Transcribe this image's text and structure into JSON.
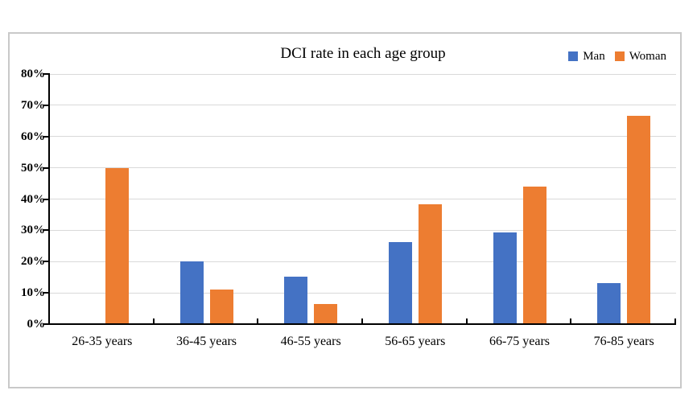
{
  "chart_data": {
    "type": "bar",
    "title": "DCI rate in each age group",
    "categories": [
      "26-35 years",
      "36-45 years",
      "46-55 years",
      "56-65 years",
      "66-75 years",
      "76-85 years"
    ],
    "series": [
      {
        "name": "Man",
        "color": "#4472C4",
        "values": [
          0,
          20,
          15.2,
          26.3,
          29.4,
          13
        ]
      },
      {
        "name": "Woman",
        "color": "#ED7D31",
        "values": [
          50,
          11.1,
          6.5,
          38.2,
          44.1,
          66.7
        ]
      }
    ],
    "ylim": [
      0,
      80
    ],
    "y_tick_step": 10,
    "y_tick_labels": [
      "0%",
      "10%",
      "20%",
      "30%",
      "40%",
      "50%",
      "60%",
      "70%",
      "80%"
    ],
    "y_unit": "%",
    "grid": true,
    "legend_position": "top-right"
  },
  "colors": {
    "man_series": "#4472C4",
    "woman_series": "#ED7D31",
    "gridline": "#d9d9d9",
    "axis": "#000000",
    "panel_border": "#c9c9c9",
    "background": "#ffffff",
    "text": "#000000"
  }
}
